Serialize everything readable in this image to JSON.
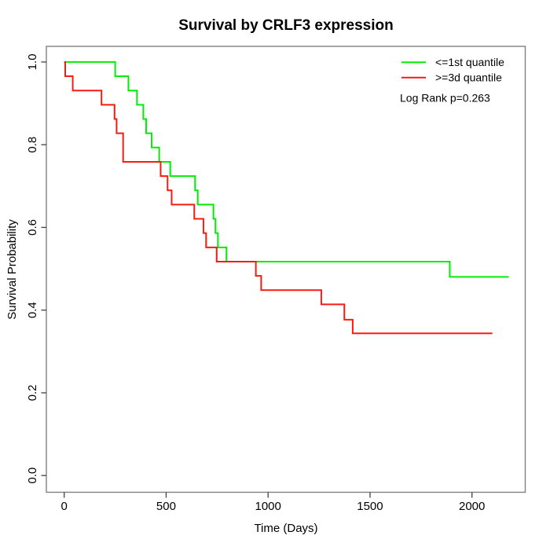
{
  "chart_data": {
    "type": "line",
    "subtype": "kaplan-meier-step",
    "title": "Survival by CRLF3 expression",
    "xlabel": "Time (Days)",
    "ylabel": "Survival Probability",
    "annotation": "Log Rank p=0.263",
    "xlim": [
      0,
      2260
    ],
    "ylim": [
      0,
      1.0
    ],
    "grid": false,
    "legend_position": "top-right",
    "x_ticks": [
      0,
      500,
      1000,
      1500,
      2000
    ],
    "x_tick_labels": [
      "0",
      "500",
      "1000",
      "1500",
      "2000"
    ],
    "y_ticks": [
      1.0,
      0.8,
      0.6,
      0.4,
      0.2,
      0.0
    ],
    "y_tick_labels": [
      "1.0",
      "0.8",
      "0.6",
      "0.4",
      "0.2",
      "0.0"
    ],
    "axis_color": "#808080",
    "tick_color": "#404040",
    "series": [
      {
        "name": "<=1st quantile",
        "color": "#00EE00",
        "end_time": 2180,
        "steps": [
          [
            0,
            1.0
          ],
          [
            250,
            0.9655
          ],
          [
            315,
            0.931
          ],
          [
            357,
            0.8966
          ],
          [
            388,
            0.8621
          ],
          [
            402,
            0.8276
          ],
          [
            429,
            0.7931
          ],
          [
            466,
            0.7586
          ],
          [
            520,
            0.7241
          ],
          [
            642,
            0.6897
          ],
          [
            655,
            0.6552
          ],
          [
            732,
            0.6207
          ],
          [
            742,
            0.5862
          ],
          [
            754,
            0.5517
          ],
          [
            796,
            0.5172
          ],
          [
            1891,
            0.4803
          ]
        ]
      },
      {
        "name": ">=3d quantile",
        "color": "#FB1A10",
        "end_time": 2100,
        "steps": [
          [
            0,
            1.0
          ],
          [
            5,
            0.9655
          ],
          [
            42,
            0.931
          ],
          [
            183,
            0.8966
          ],
          [
            247,
            0.8621
          ],
          [
            257,
            0.8276
          ],
          [
            289,
            0.7586
          ],
          [
            473,
            0.7241
          ],
          [
            507,
            0.6897
          ],
          [
            527,
            0.6552
          ],
          [
            638,
            0.6207
          ],
          [
            683,
            0.5862
          ],
          [
            696,
            0.5517
          ],
          [
            748,
            0.5172
          ],
          [
            940,
            0.4828
          ],
          [
            966,
            0.4483
          ],
          [
            1261,
            0.4138
          ],
          [
            1374,
            0.3768
          ],
          [
            1415,
            0.3439
          ]
        ]
      }
    ]
  }
}
